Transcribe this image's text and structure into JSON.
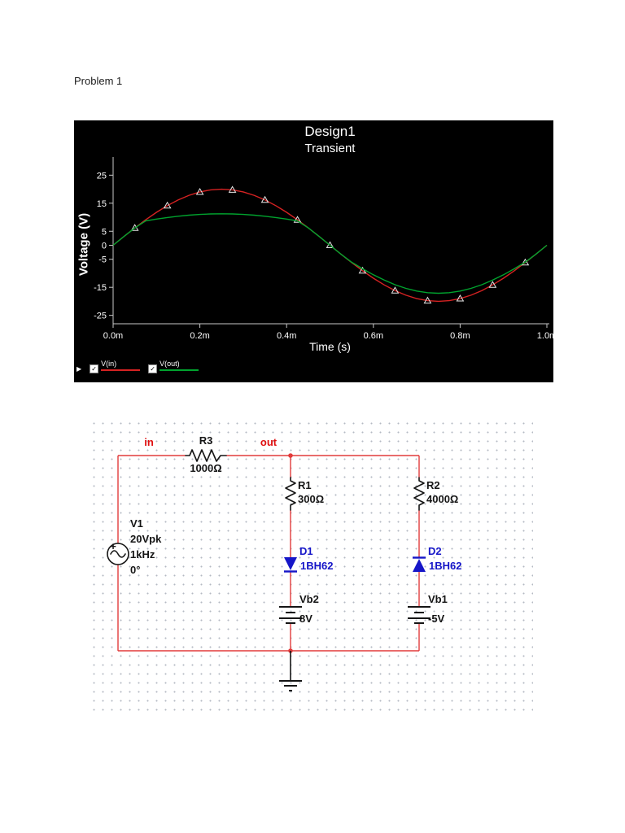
{
  "page": {
    "heading": "Problem 1"
  },
  "chart_data": {
    "type": "line",
    "title": "Design1",
    "subtitle": "Transient",
    "xlabel": "Time (s)",
    "ylabel": "Voltage (V)",
    "bg": "#000000",
    "axis_color": "#c8c8c8",
    "text_color": "#ffffff",
    "xlim": [
      0,
      1
    ],
    "ylim": [
      -28,
      28
    ],
    "x_unit": "ms",
    "x_ticks": [
      {
        "t": 0.0,
        "label": "0.0m"
      },
      {
        "t": 0.2,
        "label": "0.2m"
      },
      {
        "t": 0.4,
        "label": "0.4m"
      },
      {
        "t": 0.6,
        "label": "0.6m"
      },
      {
        "t": 0.8,
        "label": "0.8m"
      },
      {
        "t": 1.0,
        "label": "1.0m"
      }
    ],
    "y_ticks": [
      25,
      15,
      5,
      0,
      -5,
      -15,
      -25
    ],
    "x_ms": [
      0,
      0.025,
      0.05,
      0.075,
      0.1,
      0.125,
      0.15,
      0.175,
      0.2,
      0.225,
      0.25,
      0.275,
      0.3,
      0.325,
      0.35,
      0.375,
      0.4,
      0.425,
      0.45,
      0.475,
      0.5,
      0.525,
      0.55,
      0.575,
      0.6,
      0.625,
      0.65,
      0.675,
      0.7,
      0.725,
      0.75,
      0.775,
      0.8,
      0.825,
      0.85,
      0.875,
      0.9,
      0.925,
      0.95,
      0.975,
      1.0
    ],
    "series": [
      {
        "name": "V(in)",
        "color": "#d62222",
        "marker": "triangle",
        "marker_color": "#e6e6e6",
        "values": [
          0,
          3.13,
          6.18,
          9.08,
          11.76,
          14.14,
          16.18,
          17.82,
          19.02,
          19.75,
          20,
          19.75,
          19.02,
          17.82,
          16.18,
          14.14,
          11.76,
          9.08,
          6.18,
          3.13,
          0,
          -3.13,
          -6.18,
          -9.08,
          -11.76,
          -14.14,
          -16.18,
          -17.82,
          -19.02,
          -19.75,
          -20,
          -19.75,
          -19.02,
          -17.82,
          -16.18,
          -14.14,
          -11.76,
          -9.08,
          -6.18,
          -3.13,
          0
        ]
      },
      {
        "name": "V(out)",
        "color": "#00a32e",
        "marker": "none",
        "marker_color": "#e6e6e6",
        "values": [
          0,
          3.13,
          6.18,
          8.71,
          9.33,
          9.88,
          10.35,
          10.73,
          11.0,
          11.17,
          11.23,
          11.17,
          11.0,
          10.73,
          10.35,
          9.88,
          9.33,
          8.71,
          6.18,
          3.13,
          0,
          -3.13,
          -6.06,
          -8.38,
          -10.53,
          -12.43,
          -14.06,
          -15.38,
          -16.34,
          -16.92,
          -17.12,
          -16.92,
          -16.34,
          -15.38,
          -14.06,
          -12.43,
          -10.53,
          -8.38,
          -6.06,
          -3.13,
          0
        ]
      }
    ],
    "legend_arrow": "▶",
    "checkbox_glyph": "✓"
  },
  "circuit": {
    "labels": {
      "in": "in",
      "out": "out"
    },
    "v1": {
      "ref": "V1",
      "lines": [
        "20Vpk",
        "1kHz",
        "0°"
      ],
      "plus": "+"
    },
    "r3": {
      "ref": "R3",
      "value": "1000Ω"
    },
    "r1": {
      "ref": "R1",
      "value": "300Ω"
    },
    "r2": {
      "ref": "R2",
      "value": "4000Ω"
    },
    "d1": {
      "ref": "D1",
      "value": "1BH62"
    },
    "d2": {
      "ref": "D2",
      "value": "1BH62"
    },
    "vb2": {
      "ref": "Vb2",
      "value": "8V"
    },
    "vb1": {
      "ref": "Vb1",
      "value": "-5V"
    },
    "wire_color": "#e23b3b",
    "diode_color": "#1616c8",
    "component_color": "#151515",
    "node_label_color": "#e01010"
  }
}
